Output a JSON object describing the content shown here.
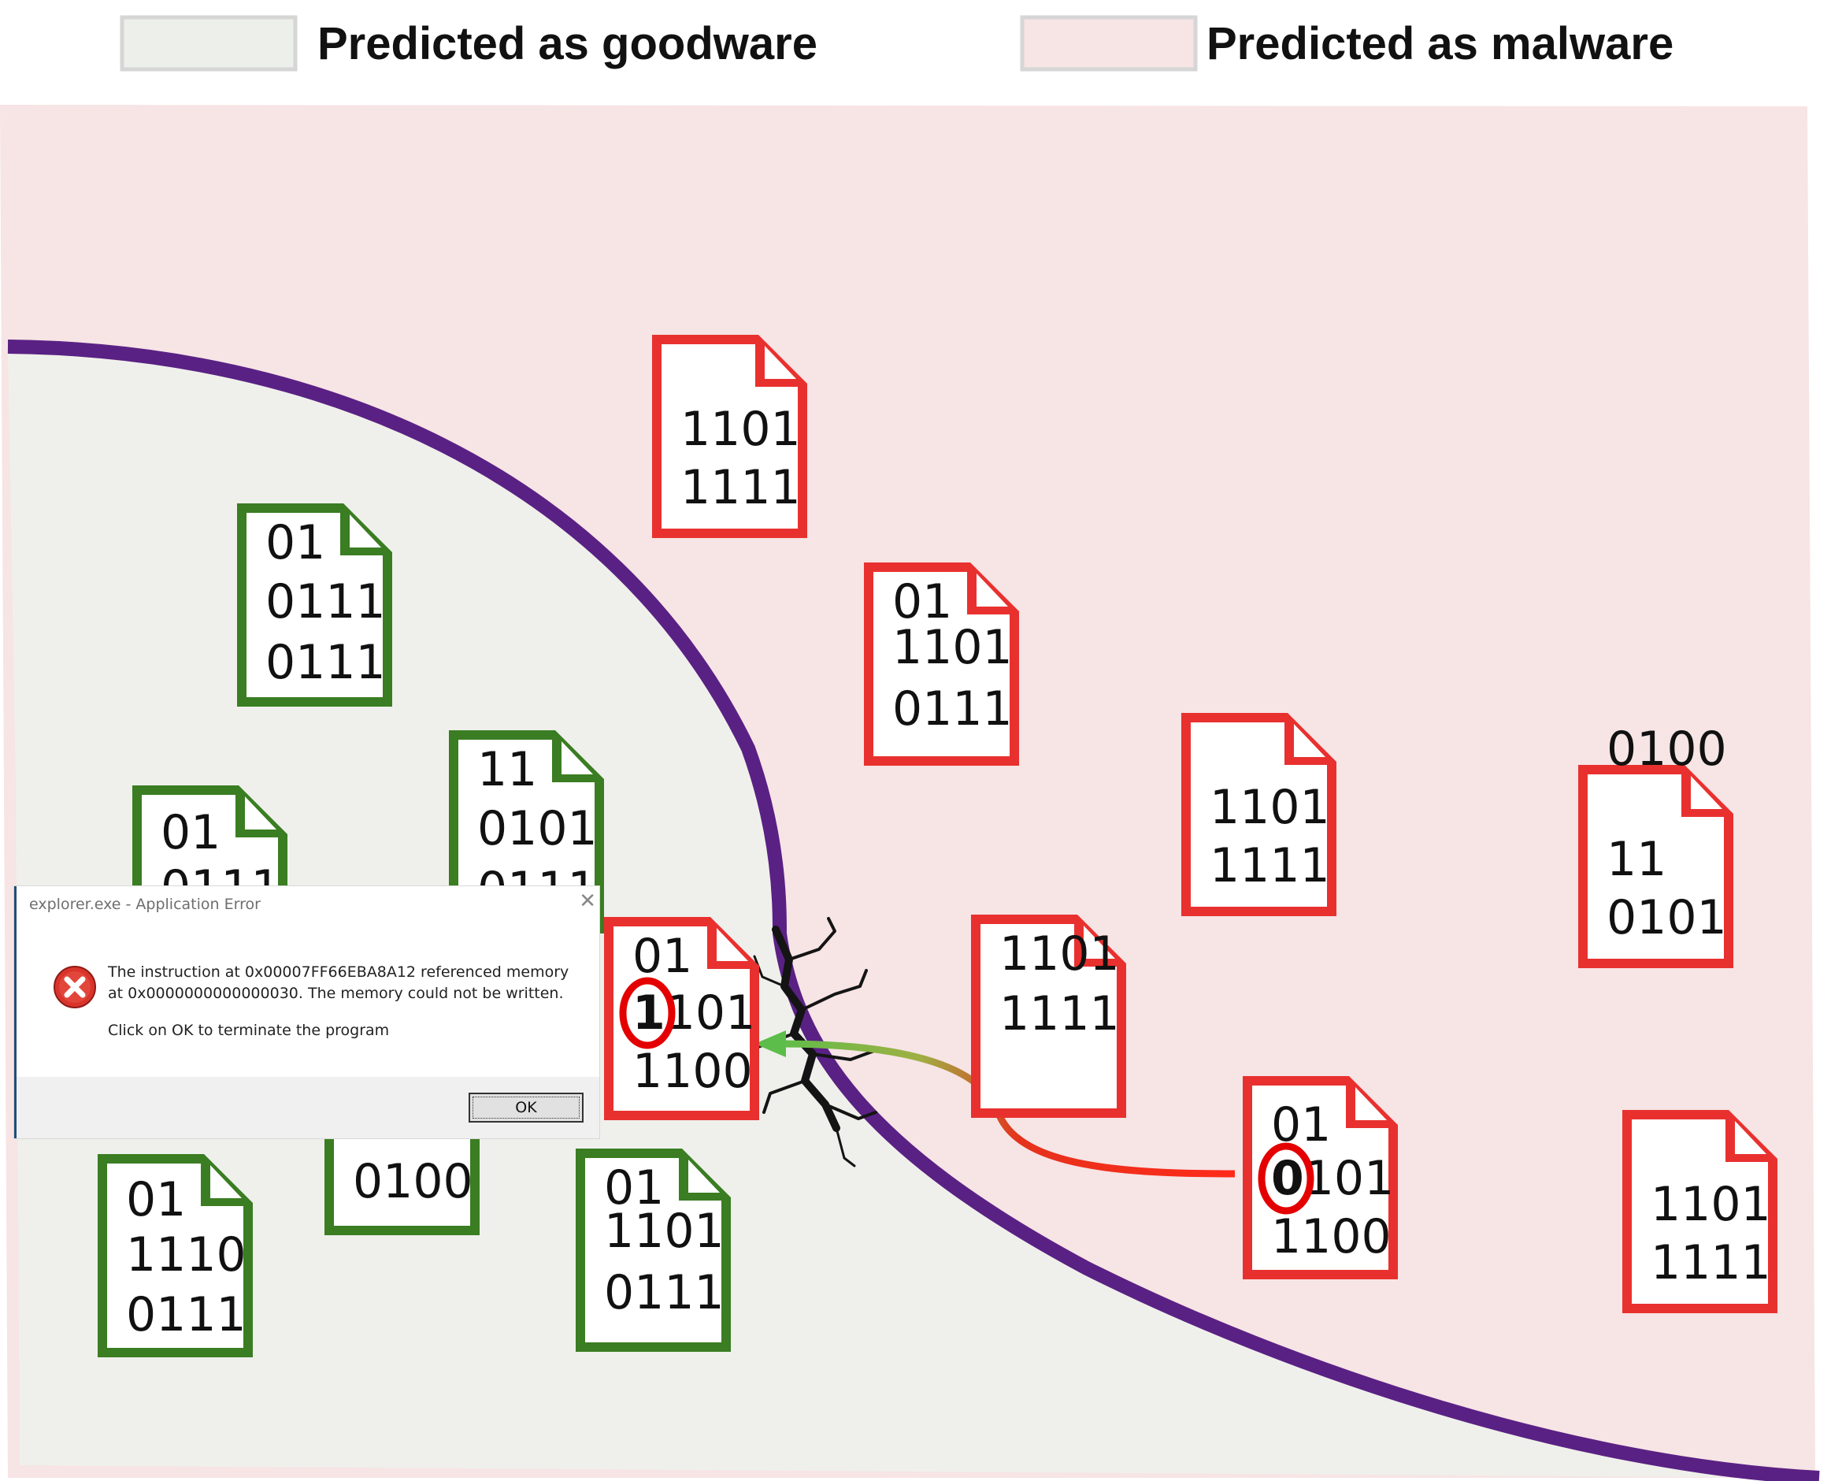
{
  "legend": {
    "goodware": {
      "label": "Predicted as goodware",
      "color": "#edefea"
    },
    "malware": {
      "label": "Predicted as malware",
      "color": "#f7e4e5"
    }
  },
  "colors": {
    "boundary": "#5a2184",
    "goodware_file": "#3a7d22",
    "malware_file": "#e8312f",
    "highlight_ring": "#e40000",
    "arrow_start": "#ff2a1a",
    "arrow_end": "#5cbd4a"
  },
  "files": {
    "goodware": [
      {
        "lines": [
          "01",
          "0111",
          "0111"
        ]
      },
      {
        "lines": [
          "01",
          "0111"
        ]
      },
      {
        "lines": [
          "11",
          "0101",
          "0111"
        ]
      },
      {
        "lines": [
          "01",
          "1110",
          "0111"
        ]
      },
      {
        "lines": [
          "0100"
        ]
      },
      {
        "lines": [
          "01",
          "1101",
          "0111"
        ]
      }
    ],
    "malware": [
      {
        "lines": [
          "1101",
          "1111"
        ]
      },
      {
        "lines": [
          "01",
          "1101",
          "0111"
        ]
      },
      {
        "lines": [
          "1101",
          "1111"
        ]
      },
      {
        "lines": [
          "1101",
          "1111"
        ]
      },
      {
        "lines": [
          "11",
          "0101",
          "0100"
        ]
      },
      {
        "lines": [
          "1101",
          "1111"
        ]
      }
    ],
    "original_malware": {
      "lines": [
        "01",
        "0101",
        "1100"
      ],
      "highlighted_bit": "0"
    },
    "adversarial_file": {
      "lines": [
        "01",
        "1101",
        "1100"
      ],
      "highlighted_bit": "1"
    }
  },
  "dialog": {
    "title": "explorer.exe - Application Error",
    "message": "The instruction at 0x00007FF66EBA8A12 referenced memory at 0x0000000000000030. The memory could not be written.",
    "prompt": "Click on OK to terminate the program",
    "ok_label": "OK",
    "close_glyph": "✕",
    "icon": "error-x-icon"
  }
}
